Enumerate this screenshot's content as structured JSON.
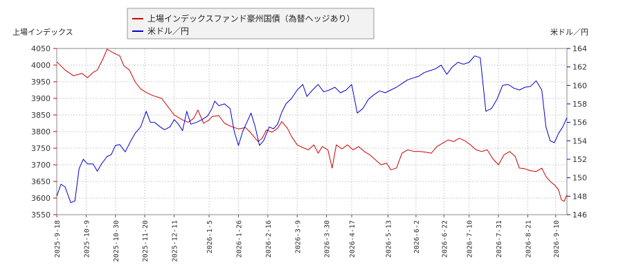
{
  "chart_data": {
    "type": "line",
    "y_left_label": "上場インデックス",
    "y_right_label": "米ドル／円",
    "y_left_range": [
      3550,
      4050
    ],
    "y_right_range": [
      146,
      164
    ],
    "y_left_ticks": [
      3550,
      3600,
      3650,
      3700,
      3750,
      3800,
      3850,
      3900,
      3950,
      4000,
      4050
    ],
    "y_right_ticks": [
      146,
      148,
      150,
      152,
      154,
      156,
      158,
      160,
      162,
      164
    ],
    "x_range": [
      "2025-09-18",
      "2026-09-18"
    ],
    "x_ticks": [
      "2025-9-18",
      "2025-10-9",
      "2025-10-30",
      "2025-11-20",
      "2025-12-11",
      "2026-1-5",
      "2026-1-26",
      "2026-2-16",
      "2026-3-9",
      "2026-3-30",
      "2026-4-17",
      "2026-5-13",
      "2026-6-2",
      "2026-6-22",
      "2026-7-10",
      "2026-7-31",
      "2026-8-21",
      "2026-9-10"
    ],
    "grid": true,
    "legend_placement": "top",
    "series": [
      {
        "name": "上場インデックスファンド豪州国債（為替ヘッジあり）",
        "axis": "left",
        "color": "#cc0000",
        "points": [
          [
            "2025-09-18",
            4010
          ],
          [
            "2025-09-24",
            3985
          ],
          [
            "2025-09-30",
            3968
          ],
          [
            "2025-10-06",
            3975
          ],
          [
            "2025-10-10",
            3962
          ],
          [
            "2025-10-14",
            3978
          ],
          [
            "2025-10-17",
            3985
          ],
          [
            "2025-10-21",
            4018
          ],
          [
            "2025-10-24",
            4048
          ],
          [
            "2025-10-28",
            4038
          ],
          [
            "2025-11-02",
            4028
          ],
          [
            "2025-11-05",
            3998
          ],
          [
            "2025-11-09",
            3985
          ],
          [
            "2025-11-13",
            3950
          ],
          [
            "2025-11-17",
            3928
          ],
          [
            "2025-11-21",
            3918
          ],
          [
            "2025-11-26",
            3908
          ],
          [
            "2025-12-02",
            3900
          ],
          [
            "2025-12-06",
            3878
          ],
          [
            "2025-12-11",
            3850
          ],
          [
            "2025-12-17",
            3835
          ],
          [
            "2025-12-21",
            3828
          ],
          [
            "2025-12-25",
            3840
          ],
          [
            "2025-12-28",
            3865
          ],
          [
            "2026-01-01",
            3825
          ],
          [
            "2026-01-05",
            3835
          ],
          [
            "2026-01-07",
            3845
          ],
          [
            "2026-01-12",
            3848
          ],
          [
            "2026-01-16",
            3825
          ],
          [
            "2026-01-21",
            3815
          ],
          [
            "2026-01-26",
            3808
          ],
          [
            "2026-01-31",
            3812
          ],
          [
            "2026-02-03",
            3800
          ],
          [
            "2026-02-06",
            3785
          ],
          [
            "2026-02-09",
            3770
          ],
          [
            "2026-02-12",
            3780
          ],
          [
            "2026-02-15",
            3805
          ],
          [
            "2026-02-19",
            3798
          ],
          [
            "2026-02-23",
            3810
          ],
          [
            "2026-02-26",
            3830
          ],
          [
            "2026-03-02",
            3810
          ],
          [
            "2026-03-05",
            3785
          ],
          [
            "2026-03-09",
            3760
          ],
          [
            "2026-03-13",
            3752
          ],
          [
            "2026-03-17",
            3745
          ],
          [
            "2026-03-21",
            3760
          ],
          [
            "2026-03-24",
            3735
          ],
          [
            "2026-03-27",
            3755
          ],
          [
            "2026-03-31",
            3745
          ],
          [
            "2026-04-03",
            3690
          ],
          [
            "2026-04-06",
            3760
          ],
          [
            "2026-04-10",
            3748
          ],
          [
            "2026-04-14",
            3760
          ],
          [
            "2026-04-18",
            3745
          ],
          [
            "2026-04-22",
            3755
          ],
          [
            "2026-04-26",
            3740
          ],
          [
            "2026-04-30",
            3730
          ],
          [
            "2026-05-04",
            3715
          ],
          [
            "2026-05-08",
            3700
          ],
          [
            "2026-05-12",
            3705
          ],
          [
            "2026-05-15",
            3685
          ],
          [
            "2026-05-19",
            3690
          ],
          [
            "2026-05-23",
            3735
          ],
          [
            "2026-05-27",
            3745
          ],
          [
            "2026-06-01",
            3740
          ],
          [
            "2026-06-05",
            3740
          ],
          [
            "2026-06-09",
            3738
          ],
          [
            "2026-06-13",
            3735
          ],
          [
            "2026-06-17",
            3755
          ],
          [
            "2026-06-21",
            3765
          ],
          [
            "2026-06-25",
            3775
          ],
          [
            "2026-06-29",
            3770
          ],
          [
            "2026-07-03",
            3780
          ],
          [
            "2026-07-07",
            3772
          ],
          [
            "2026-07-11",
            3760
          ],
          [
            "2026-07-15",
            3745
          ],
          [
            "2026-07-19",
            3740
          ],
          [
            "2026-07-23",
            3745
          ],
          [
            "2026-07-27",
            3718
          ],
          [
            "2026-07-31",
            3700
          ],
          [
            "2026-08-04",
            3730
          ],
          [
            "2026-08-08",
            3740
          ],
          [
            "2026-08-12",
            3725
          ],
          [
            "2026-08-15",
            3690
          ],
          [
            "2026-08-19",
            3688
          ],
          [
            "2026-08-23",
            3682
          ],
          [
            "2026-08-27",
            3680
          ],
          [
            "2026-08-31",
            3690
          ],
          [
            "2026-09-03",
            3665
          ],
          [
            "2026-09-06",
            3650
          ],
          [
            "2026-09-09",
            3640
          ],
          [
            "2026-09-12",
            3625
          ],
          [
            "2026-09-14",
            3595
          ],
          [
            "2026-09-16",
            3590
          ],
          [
            "2026-09-18",
            3610
          ]
        ]
      },
      {
        "name": "米ドル／円",
        "axis": "right",
        "color": "#0000cc",
        "points": [
          [
            "2025-09-18",
            148.0
          ],
          [
            "2025-09-21",
            149.3
          ],
          [
            "2025-09-24",
            149.0
          ],
          [
            "2025-09-28",
            147.3
          ],
          [
            "2025-10-01",
            147.5
          ],
          [
            "2025-10-04",
            151.0
          ],
          [
            "2025-10-07",
            152.0
          ],
          [
            "2025-10-10",
            151.5
          ],
          [
            "2025-10-14",
            151.5
          ],
          [
            "2025-10-17",
            150.7
          ],
          [
            "2025-10-20",
            151.5
          ],
          [
            "2025-10-24",
            152.3
          ],
          [
            "2025-10-27",
            152.5
          ],
          [
            "2025-10-30",
            153.5
          ],
          [
            "2025-11-02",
            153.6
          ],
          [
            "2025-11-06",
            152.8
          ],
          [
            "2025-11-10",
            154.0
          ],
          [
            "2025-11-13",
            154.8
          ],
          [
            "2025-11-17",
            155.5
          ],
          [
            "2025-11-21",
            157.2
          ],
          [
            "2025-11-24",
            156.0
          ],
          [
            "2025-11-27",
            156.0
          ],
          [
            "2025-12-01",
            155.5
          ],
          [
            "2025-12-04",
            155.2
          ],
          [
            "2025-12-08",
            155.5
          ],
          [
            "2025-12-11",
            156.3
          ],
          [
            "2025-12-14",
            155.8
          ],
          [
            "2025-12-17",
            155.1
          ],
          [
            "2025-12-20",
            157.2
          ],
          [
            "2025-12-23",
            155.8
          ],
          [
            "2025-12-27",
            156.0
          ],
          [
            "2025-12-31",
            156.3
          ],
          [
            "2026-01-04",
            156.7
          ],
          [
            "2026-01-07",
            157.5
          ],
          [
            "2026-01-09",
            158.3
          ],
          [
            "2026-01-12",
            157.8
          ],
          [
            "2026-01-16",
            158.0
          ],
          [
            "2026-01-20",
            157.5
          ],
          [
            "2026-01-23",
            155.0
          ],
          [
            "2026-01-26",
            153.5
          ],
          [
            "2026-01-29",
            155.0
          ],
          [
            "2026-02-01",
            156.0
          ],
          [
            "2026-02-04",
            157.0
          ],
          [
            "2026-02-07",
            155.5
          ],
          [
            "2026-02-10",
            153.5
          ],
          [
            "2026-02-13",
            154.0
          ],
          [
            "2026-02-17",
            155.5
          ],
          [
            "2026-02-20",
            155.3
          ],
          [
            "2026-02-23",
            155.8
          ],
          [
            "2026-02-26",
            157.1
          ],
          [
            "2026-03-01",
            158.0
          ],
          [
            "2026-03-05",
            158.6
          ],
          [
            "2026-03-09",
            159.5
          ],
          [
            "2026-03-13",
            160.1
          ],
          [
            "2026-03-16",
            158.8
          ],
          [
            "2026-03-20",
            159.5
          ],
          [
            "2026-03-24",
            160.1
          ],
          [
            "2026-03-28",
            159.3
          ],
          [
            "2026-04-01",
            159.5
          ],
          [
            "2026-04-05",
            159.8
          ],
          [
            "2026-04-09",
            159.2
          ],
          [
            "2026-04-13",
            159.5
          ],
          [
            "2026-04-17",
            160.1
          ],
          [
            "2026-04-21",
            157.0
          ],
          [
            "2026-04-25",
            157.5
          ],
          [
            "2026-04-29",
            158.5
          ],
          [
            "2026-05-03",
            159.0
          ],
          [
            "2026-05-07",
            159.4
          ],
          [
            "2026-05-11",
            159.2
          ],
          [
            "2026-05-15",
            159.5
          ],
          [
            "2026-05-19",
            159.8
          ],
          [
            "2026-05-23",
            160.2
          ],
          [
            "2026-05-27",
            160.6
          ],
          [
            "2026-05-31",
            160.8
          ],
          [
            "2026-06-04",
            161.0
          ],
          [
            "2026-06-08",
            161.4
          ],
          [
            "2026-06-12",
            161.6
          ],
          [
            "2026-06-16",
            161.8
          ],
          [
            "2026-06-20",
            162.2
          ],
          [
            "2026-06-24",
            161.2
          ],
          [
            "2026-06-28",
            162.0
          ],
          [
            "2026-07-02",
            162.5
          ],
          [
            "2026-07-06",
            162.3
          ],
          [
            "2026-07-10",
            162.5
          ],
          [
            "2026-07-14",
            163.2
          ],
          [
            "2026-07-18",
            163.0
          ],
          [
            "2026-07-22",
            157.2
          ],
          [
            "2026-07-26",
            157.5
          ],
          [
            "2026-07-30",
            158.5
          ],
          [
            "2026-08-03",
            160.0
          ],
          [
            "2026-08-07",
            160.1
          ],
          [
            "2026-08-11",
            159.7
          ],
          [
            "2026-08-15",
            159.5
          ],
          [
            "2026-08-19",
            159.8
          ],
          [
            "2026-08-23",
            159.9
          ],
          [
            "2026-08-27",
            160.5
          ],
          [
            "2026-08-31",
            159.5
          ],
          [
            "2026-09-03",
            155.5
          ],
          [
            "2026-09-06",
            154.0
          ],
          [
            "2026-09-09",
            153.8
          ],
          [
            "2026-09-12",
            154.8
          ],
          [
            "2026-09-15",
            155.5
          ],
          [
            "2026-09-18",
            156.5
          ]
        ]
      }
    ]
  }
}
